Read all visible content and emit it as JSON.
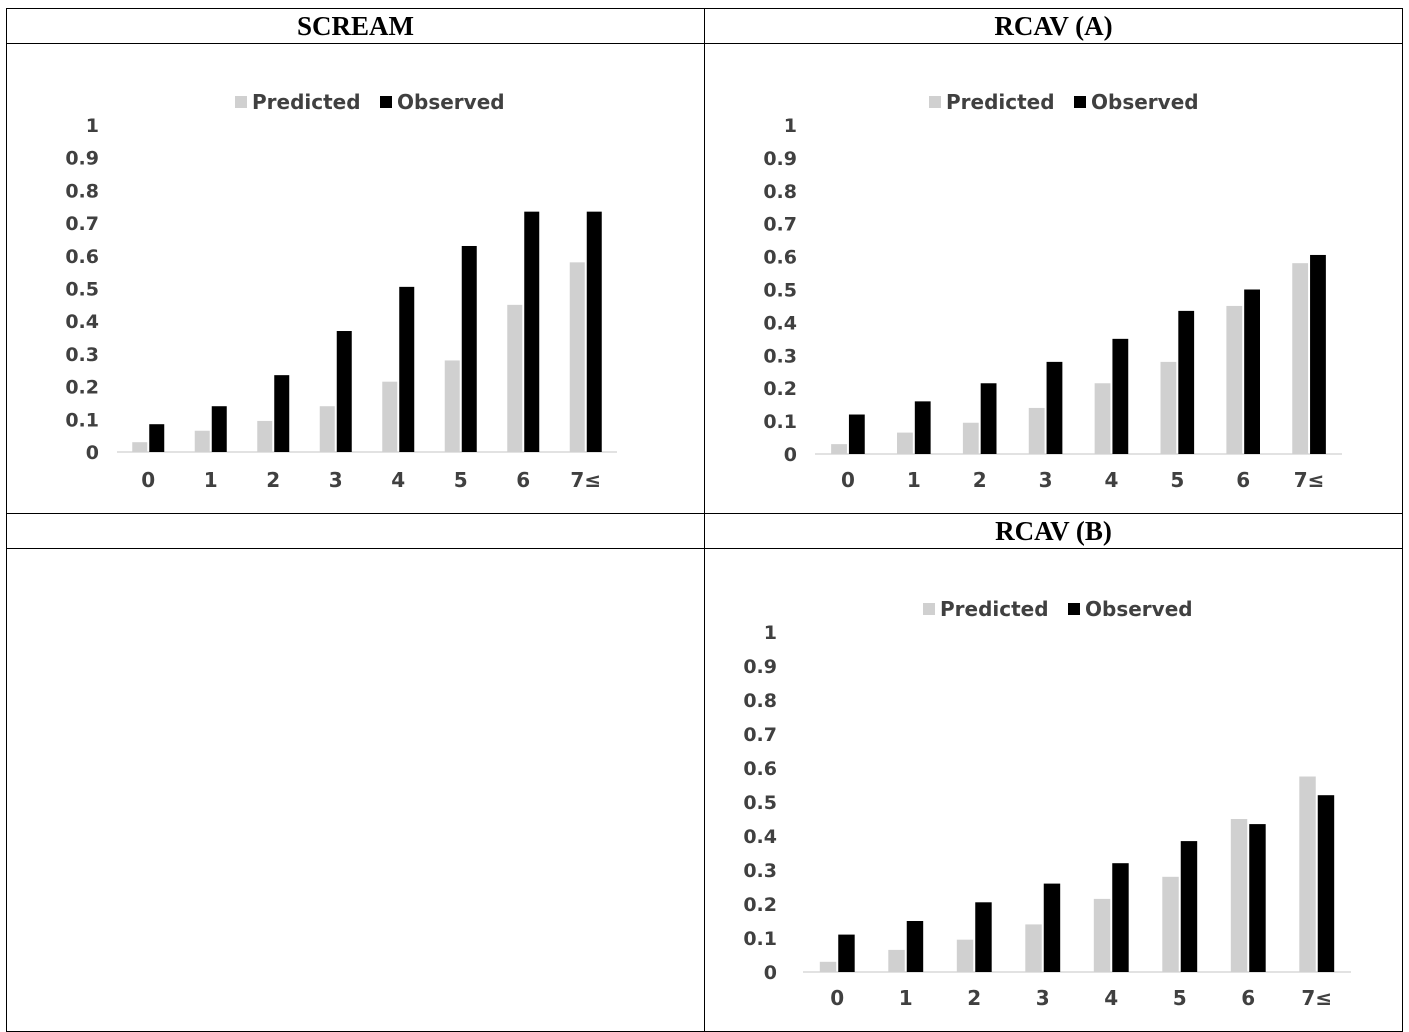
{
  "panels": {
    "scream": {
      "title": "SCREAM"
    },
    "rcav_a": {
      "title": "RCAV (A)"
    },
    "blank": {
      "title": ""
    },
    "rcav_b": {
      "title": "RCAV (B)"
    }
  },
  "colors": {
    "predicted": "#d0d0d0",
    "observed": "#000000",
    "axis": "#d9d9d9",
    "text": "#404040"
  },
  "chart_data": [
    {
      "panel": "SCREAM",
      "type": "bar",
      "categories": [
        "0",
        "1",
        "2",
        "3",
        "4",
        "5",
        "6",
        "7≤"
      ],
      "series": [
        {
          "name": "Predicted",
          "values": [
            0.03,
            0.065,
            0.095,
            0.14,
            0.215,
            0.28,
            0.45,
            0.58
          ]
        },
        {
          "name": "Observed",
          "values": [
            0.085,
            0.14,
            0.235,
            0.37,
            0.505,
            0.63,
            0.735,
            0.735
          ]
        }
      ],
      "yticks": [
        "0",
        "0.1",
        "0.2",
        "0.3",
        "0.4",
        "0.5",
        "0.6",
        "0.7",
        "0.8",
        "0.9",
        "1"
      ],
      "ylim": [
        0,
        1
      ],
      "legend": "top-center",
      "grid": false
    },
    {
      "panel": "RCAV (A)",
      "type": "bar",
      "categories": [
        "0",
        "1",
        "2",
        "3",
        "4",
        "5",
        "6",
        "7≤"
      ],
      "series": [
        {
          "name": "Predicted",
          "values": [
            0.03,
            0.065,
            0.095,
            0.14,
            0.215,
            0.28,
            0.45,
            0.58
          ]
        },
        {
          "name": "Observed",
          "values": [
            0.12,
            0.16,
            0.215,
            0.28,
            0.35,
            0.435,
            0.5,
            0.605
          ]
        }
      ],
      "yticks": [
        "0",
        "0.1",
        "0.2",
        "0.3",
        "0.4",
        "0.5",
        "0.6",
        "0.7",
        "0.8",
        "0.9",
        "1"
      ],
      "ylim": [
        0,
        1
      ],
      "legend": "top-center",
      "grid": false
    },
    {
      "panel": "RCAV (B)",
      "type": "bar",
      "categories": [
        "0",
        "1",
        "2",
        "3",
        "4",
        "5",
        "6",
        "7≤"
      ],
      "series": [
        {
          "name": "Predicted",
          "values": [
            0.03,
            0.065,
            0.095,
            0.14,
            0.215,
            0.28,
            0.45,
            0.575
          ]
        },
        {
          "name": "Observed",
          "values": [
            0.11,
            0.15,
            0.205,
            0.26,
            0.32,
            0.385,
            0.435,
            0.52
          ]
        }
      ],
      "yticks": [
        "0",
        "0.1",
        "0.2",
        "0.3",
        "0.4",
        "0.5",
        "0.6",
        "0.7",
        "0.8",
        "0.9",
        "1"
      ],
      "ylim": [
        0,
        1
      ],
      "legend": "top-center",
      "grid": false
    }
  ]
}
